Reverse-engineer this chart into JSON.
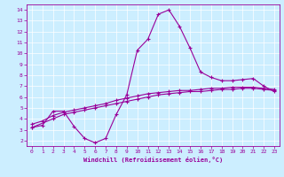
{
  "xlabel": "Windchill (Refroidissement éolien,°C)",
  "background_color": "#cceeff",
  "line_color": "#990099",
  "xlim": [
    -0.5,
    23.5
  ],
  "ylim": [
    1.5,
    14.5
  ],
  "xticks": [
    0,
    1,
    2,
    3,
    4,
    5,
    6,
    7,
    8,
    9,
    10,
    11,
    12,
    13,
    14,
    15,
    16,
    17,
    18,
    19,
    20,
    21,
    22,
    23
  ],
  "yticks": [
    2,
    3,
    4,
    5,
    6,
    7,
    8,
    9,
    10,
    11,
    12,
    13,
    14
  ],
  "line1_x": [
    0,
    1,
    2,
    3,
    4,
    5,
    6,
    7,
    8,
    9,
    10,
    11,
    12,
    13,
    14,
    15,
    16,
    17,
    18,
    19,
    20,
    21,
    22,
    23
  ],
  "line1_y": [
    3.2,
    3.4,
    4.7,
    4.7,
    3.3,
    2.2,
    1.8,
    2.2,
    4.4,
    6.2,
    10.3,
    11.3,
    13.6,
    14.0,
    12.5,
    10.5,
    8.3,
    7.8,
    7.5,
    7.5,
    7.6,
    7.7,
    7.0,
    6.5
  ],
  "line2_x": [
    0,
    2,
    3,
    4,
    5,
    6,
    7,
    8,
    9,
    10,
    11,
    12,
    13,
    14,
    15,
    16,
    17,
    18,
    19,
    20,
    21,
    22,
    23
  ],
  "line2_y": [
    3.2,
    4.0,
    4.4,
    4.6,
    4.8,
    5.0,
    5.2,
    5.4,
    5.6,
    5.8,
    6.0,
    6.2,
    6.3,
    6.4,
    6.5,
    6.5,
    6.6,
    6.7,
    6.7,
    6.8,
    6.8,
    6.7,
    6.6
  ],
  "line3_x": [
    0,
    1,
    2,
    3,
    4,
    5,
    6,
    7,
    8,
    9,
    10,
    11,
    12,
    13,
    14,
    15,
    16,
    17,
    18,
    19,
    20,
    21,
    22,
    23
  ],
  "line3_y": [
    3.5,
    3.8,
    4.3,
    4.6,
    4.8,
    5.0,
    5.2,
    5.4,
    5.7,
    5.9,
    6.1,
    6.3,
    6.4,
    6.5,
    6.6,
    6.6,
    6.7,
    6.8,
    6.8,
    6.9,
    6.9,
    6.9,
    6.8,
    6.7
  ]
}
